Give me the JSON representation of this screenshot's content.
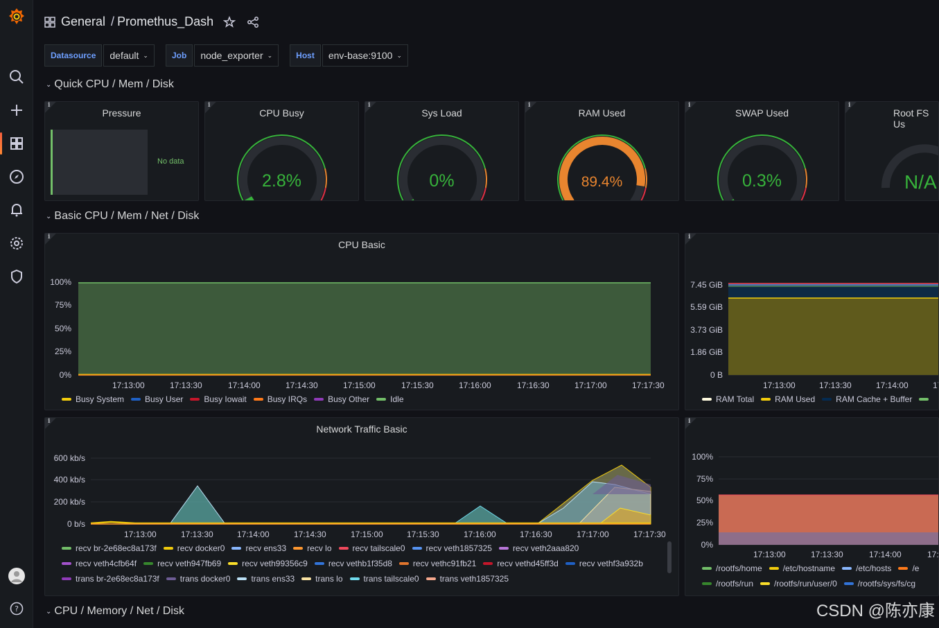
{
  "header": {
    "folder": "General",
    "separator": "/",
    "dashboard": "Promethus_Dash"
  },
  "variables": [
    {
      "label": "Datasource",
      "value": "default"
    },
    {
      "label": "Job",
      "value": "node_exporter"
    },
    {
      "label": "Host",
      "value": "env-base:9100"
    }
  ],
  "rows": {
    "quick": "Quick CPU / Mem / Disk",
    "basic": "Basic CPU / Mem / Net / Disk",
    "full": "CPU / Memory / Net / Disk"
  },
  "stats": {
    "pressure": {
      "title": "Pressure",
      "no_data": "No data"
    },
    "cpu_busy": {
      "title": "CPU Busy",
      "value": "2.8%",
      "percent": 2.8,
      "color": "#37b33b"
    },
    "sys_load": {
      "title": "Sys Load",
      "value": "0%",
      "percent": 0,
      "color": "#37b33b"
    },
    "ram_used": {
      "title": "RAM Used",
      "value": "89.4%",
      "percent": 89.4,
      "color": "#e8852f"
    },
    "swap_used": {
      "title": "SWAP Used",
      "value": "0.3%",
      "percent": 0.3,
      "color": "#37b33b"
    },
    "root_fs": {
      "title": "Root FS Us",
      "value": "N/A",
      "color": "#37b33b"
    }
  },
  "cpu_basic": {
    "title": "CPU Basic",
    "yticks": [
      "100%",
      "75%",
      "50%",
      "25%",
      "0%"
    ],
    "xticks": [
      "17:13:00",
      "17:13:30",
      "17:14:00",
      "17:14:30",
      "17:15:00",
      "17:15:30",
      "17:16:00",
      "17:16:30",
      "17:17:00",
      "17:17:30"
    ],
    "legend": [
      {
        "name": "Busy System",
        "color": "#f2cc0c"
      },
      {
        "name": "Busy User",
        "color": "#1f60c4"
      },
      {
        "name": "Busy Iowait",
        "color": "#c4162a"
      },
      {
        "name": "Busy IRQs",
        "color": "#ff7a1a"
      },
      {
        "name": "Busy Other",
        "color": "#8f3bb8"
      },
      {
        "name": "Idle",
        "color": "#73bf69"
      }
    ]
  },
  "memory_basic": {
    "yticks": [
      "7.45 GiB",
      "5.59 GiB",
      "3.73 GiB",
      "1.86 GiB",
      "0 B"
    ],
    "xticks": [
      "17:13:00",
      "17:13:30",
      "17:14:00",
      "17"
    ],
    "legend": [
      {
        "name": "RAM Total",
        "color": "#fffbe0"
      },
      {
        "name": "RAM Used",
        "color": "#f2cc0c"
      },
      {
        "name": "RAM Cache + Buffer",
        "color": "#052b51"
      },
      {
        "name": "",
        "color": "#73bf69"
      }
    ]
  },
  "network_basic": {
    "title": "Network Traffic Basic",
    "yticks": [
      "600 kb/s",
      "400 kb/s",
      "200 kb/s",
      "0 b/s"
    ],
    "xticks": [
      "17:13:00",
      "17:13:30",
      "17:14:00",
      "17:14:30",
      "17:15:00",
      "17:15:30",
      "17:16:00",
      "17:16:30",
      "17:17:00",
      "17:17:30"
    ],
    "legend": [
      {
        "name": "recv br-2e68ec8a173f",
        "color": "#73bf69"
      },
      {
        "name": "recv docker0",
        "color": "#f2cc0c"
      },
      {
        "name": "recv ens33",
        "color": "#8ab8ff"
      },
      {
        "name": "recv lo",
        "color": "#ff9830"
      },
      {
        "name": "recv tailscale0",
        "color": "#f2495c"
      },
      {
        "name": "recv veth1857325",
        "color": "#5794f2"
      },
      {
        "name": "recv veth2aaa820",
        "color": "#b877d9"
      },
      {
        "name": "recv veth4cfb64f",
        "color": "#a352cc"
      },
      {
        "name": "recv veth947fb69",
        "color": "#37872d"
      },
      {
        "name": "recv veth99356c9",
        "color": "#fade2a"
      },
      {
        "name": "recv vethb1f35d8",
        "color": "#3274d9"
      },
      {
        "name": "recv vethc91fb21",
        "color": "#e0752d"
      },
      {
        "name": "recv vethd45ff3d",
        "color": "#c4162a"
      },
      {
        "name": "recv vethf3a932b",
        "color": "#1f60c4"
      },
      {
        "name": "trans br-2e68ec8a173f",
        "color": "#8f3bb8"
      },
      {
        "name": "trans docker0",
        "color": "#6d5c94"
      },
      {
        "name": "trans ens33",
        "color": "#badff4"
      },
      {
        "name": "trans lo",
        "color": "#f9e2a2"
      },
      {
        "name": "trans tailscale0",
        "color": "#70dbed"
      },
      {
        "name": "trans veth1857325",
        "color": "#f4a78c"
      }
    ]
  },
  "disk_basic": {
    "yticks": [
      "100%",
      "75%",
      "50%",
      "25%",
      "0%"
    ],
    "xticks": [
      "17:13:00",
      "17:13:30",
      "17:14:00",
      "17:"
    ],
    "legend": [
      {
        "name": "/rootfs/home",
        "color": "#73bf69"
      },
      {
        "name": "/etc/hostname",
        "color": "#f2cc0c"
      },
      {
        "name": "/etc/hosts",
        "color": "#8ab8ff"
      },
      {
        "name": "/e",
        "color": "#ff7a1a"
      },
      {
        "name": "/rootfs/run",
        "color": "#37872d"
      },
      {
        "name": "/rootfs/run/user/0",
        "color": "#fade2a"
      },
      {
        "name": "/rootfs/sys/fs/cg",
        "color": "#3274d9"
      }
    ]
  },
  "watermark": "CSDN @陈亦康"
}
